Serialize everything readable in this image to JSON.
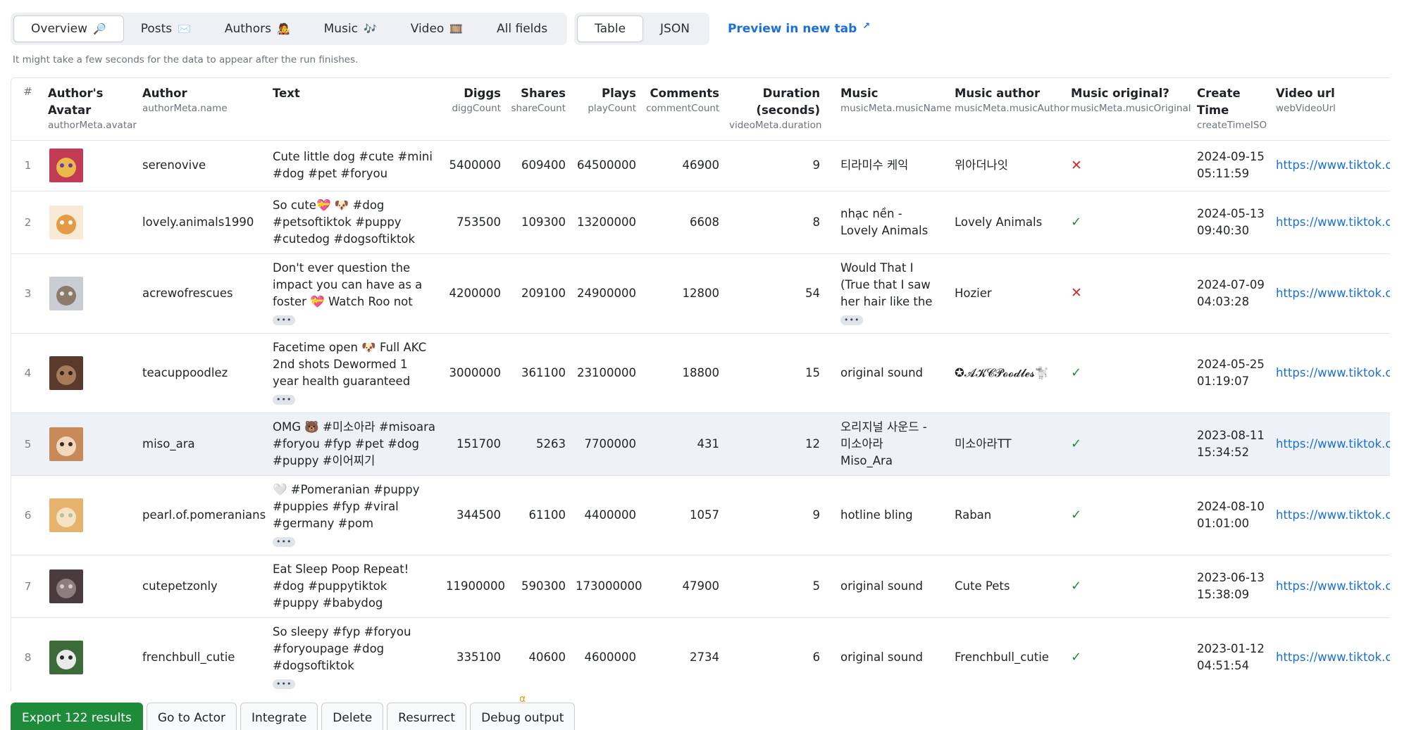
{
  "tabs": {
    "views": [
      {
        "label": "Overview",
        "emoji": "🔎",
        "active": true
      },
      {
        "label": "Posts",
        "emoji": "✉️",
        "active": false
      },
      {
        "label": "Authors",
        "emoji": "🧑‍🎤",
        "active": false
      },
      {
        "label": "Music",
        "emoji": "🎶",
        "active": false
      },
      {
        "label": "Video",
        "emoji": "🎞️",
        "active": false
      },
      {
        "label": "All fields",
        "emoji": "",
        "active": false
      }
    ],
    "formats": [
      {
        "label": "Table",
        "active": true
      },
      {
        "label": "JSON",
        "active": false
      }
    ],
    "preview_label": "Preview in new tab",
    "preview_icon": "↗"
  },
  "hint": "It might take a few seconds for the data to appear after the run finishes.",
  "columns": [
    {
      "title": "#",
      "key": ""
    },
    {
      "title": "Author's Avatar",
      "key": "authorMeta.avatar"
    },
    {
      "title": "Author",
      "key": "authorMeta.name"
    },
    {
      "title": "Text",
      "key": ""
    },
    {
      "title": "Diggs",
      "key": "diggCount"
    },
    {
      "title": "Shares",
      "key": "shareCount"
    },
    {
      "title": "Plays",
      "key": "playCount"
    },
    {
      "title": "Comments",
      "key": "commentCount"
    },
    {
      "title": "Duration (seconds)",
      "key": "videoMeta.duration"
    },
    {
      "title": "Music",
      "key": "musicMeta.musicName"
    },
    {
      "title": "Music author",
      "key": "musicMeta.musicAuthor"
    },
    {
      "title": "Music original?",
      "key": "musicMeta.musicOriginal"
    },
    {
      "title": "Create Time",
      "key": "createTimeISO"
    },
    {
      "title": "Video url",
      "key": "webVideoUrl"
    }
  ],
  "rows": [
    {
      "n": "1",
      "author": "serenovive",
      "text": "Cute little dog #cute #mini #dog #pet #foryou",
      "text_more": false,
      "diggs": "5400000",
      "shares": "609400",
      "plays": "64500000",
      "comments": "46900",
      "duration": "9",
      "music": "티라미수 케익",
      "music_more": false,
      "music_author": "위아더나잇",
      "original": false,
      "date": "2024-09-15",
      "time": "05:11:59",
      "url": "https://www.tiktok.com",
      "avatar_colors": [
        "#c23a53",
        "#e9b94a",
        "#6b3aa8"
      ]
    },
    {
      "n": "2",
      "author": "lovely.animals1990",
      "text": "So cute💝 🐶 #dog #petsoftiktok #puppy #cutedog #dogsoftiktok #cute",
      "text_more": false,
      "diggs": "753500",
      "shares": "109300",
      "plays": "13200000",
      "comments": "6608",
      "duration": "8",
      "music": "nhạc nền - Lovely Animals",
      "music_more": false,
      "music_author": "Lovely Animals",
      "original": true,
      "date": "2024-05-13",
      "time": "09:40:30",
      "url": "https://www.tiktok.com",
      "avatar_colors": [
        "#f6e9d6",
        "#e69a44",
        "#ffffff"
      ]
    },
    {
      "n": "3",
      "author": "acrewofrescues",
      "text": "Don't ever question the impact you can have as a foster 💝 Watch Roo not only become...",
      "text_more": true,
      "diggs": "4200000",
      "shares": "209100",
      "plays": "24900000",
      "comments": "12800",
      "duration": "54",
      "music": "Would That I (True that I saw her hair like the branch of ...",
      "music_more": true,
      "music_author": "Hozier",
      "original": false,
      "date": "2024-07-09",
      "time": "04:03:28",
      "url": "https://www.tiktok.com",
      "avatar_colors": [
        "#c9ccd3",
        "#8c7a6a",
        "#e7e2dc"
      ]
    },
    {
      "n": "4",
      "author": "teacuppoodlez",
      "text": "Facetime open 🐶 Full AKC 2nd shots Dewormed 1 year health guaranteed Health tested Hea...",
      "text_more": true,
      "diggs": "3000000",
      "shares": "361100",
      "plays": "23100000",
      "comments": "18800",
      "duration": "15",
      "music": "original sound",
      "music_more": false,
      "music_author": "✪𝓐𝓚𝓒𝓟𝓸𝓸𝓭𝓵𝓮𝓼🐩",
      "original": true,
      "date": "2024-05-25",
      "time": "01:19:07",
      "url": "https://www.tiktok.com",
      "avatar_colors": [
        "#5a3a2c",
        "#a77a5a",
        "#2c2420"
      ]
    },
    {
      "n": "5",
      "author": "miso_ara",
      "text": "OMG 🐻 #미소아라 #misoara #foryou #fyp #pet #dog #puppy #이어찌기",
      "text_more": false,
      "diggs": "151700",
      "shares": "5263",
      "plays": "7700000",
      "comments": "431",
      "duration": "12",
      "music": "오리지널 사운드 - 미소아라 Miso_Ara",
      "music_more": false,
      "music_author": "미소아라TT",
      "original": true,
      "date": "2023-08-11",
      "time": "15:34:52",
      "url": "https://www.tiktok.com",
      "avatar_colors": [
        "#c98a5a",
        "#f0d7bd",
        "#3a2a20"
      ]
    },
    {
      "n": "6",
      "author": "pearl.of.pomeranians",
      "text": "🤍 #Pomeranian #puppy #puppies #fyp #viral #germany #pom #pomeranianpuppies...",
      "text_more": true,
      "diggs": "344500",
      "shares": "61100",
      "plays": "4400000",
      "comments": "1057",
      "duration": "9",
      "music": "hotline bling",
      "music_more": false,
      "music_author": "Raban",
      "original": true,
      "date": "2024-08-10",
      "time": "01:01:00",
      "url": "https://www.tiktok.com",
      "avatar_colors": [
        "#e5b36b",
        "#f7e3c4",
        "#a9c79a"
      ]
    },
    {
      "n": "7",
      "author": "cutepetzonly",
      "text": "Eat Sleep Poop Repeat! #dog #puppytiktok #puppy #babydog #babypuppy",
      "text_more": false,
      "diggs": "11900000",
      "shares": "590300",
      "plays": "173000000",
      "comments": "47900",
      "duration": "5",
      "music": "original sound",
      "music_more": false,
      "music_author": "Cute Pets",
      "original": true,
      "date": "2023-06-13",
      "time": "15:38:09",
      "url": "https://www.tiktok.com",
      "avatar_colors": [
        "#4a3c3e",
        "#8d7c80",
        "#d7c9c6"
      ]
    },
    {
      "n": "8",
      "author": "frenchbull_cutie",
      "text": "So sleepy #fyp #foryou #foryoupage #dog #dogsoftiktok #frenchbulldog...",
      "text_more": true,
      "diggs": "335100",
      "shares": "40600",
      "plays": "4600000",
      "comments": "2734",
      "duration": "6",
      "music": "original sound",
      "music_more": false,
      "music_author": "Frenchbull_cutie",
      "original": true,
      "date": "2023-01-12",
      "time": "04:51:54",
      "url": "https://www.tiktok.com",
      "avatar_colors": [
        "#3d6b3a",
        "#eaeaea",
        "#2a2a2a"
      ]
    }
  ],
  "more_glyph": "•••",
  "check_glyph": "✓",
  "cross_glyph": "✕",
  "actions": [
    {
      "label": "Export 122 results",
      "primary": true,
      "badge": ""
    },
    {
      "label": "Go to Actor",
      "primary": false,
      "badge": ""
    },
    {
      "label": "Integrate",
      "primary": false,
      "badge": ""
    },
    {
      "label": "Delete",
      "primary": false,
      "badge": ""
    },
    {
      "label": "Resurrect",
      "primary": false,
      "badge": ""
    },
    {
      "label": "Debug output",
      "primary": false,
      "badge": "α"
    }
  ],
  "colors": {
    "accent": "#1c6fd6",
    "primary_button": "#1e8b3a",
    "check": "#1f8a3a",
    "cross": "#d12b2b",
    "highlight_row": "#eef1f6"
  }
}
